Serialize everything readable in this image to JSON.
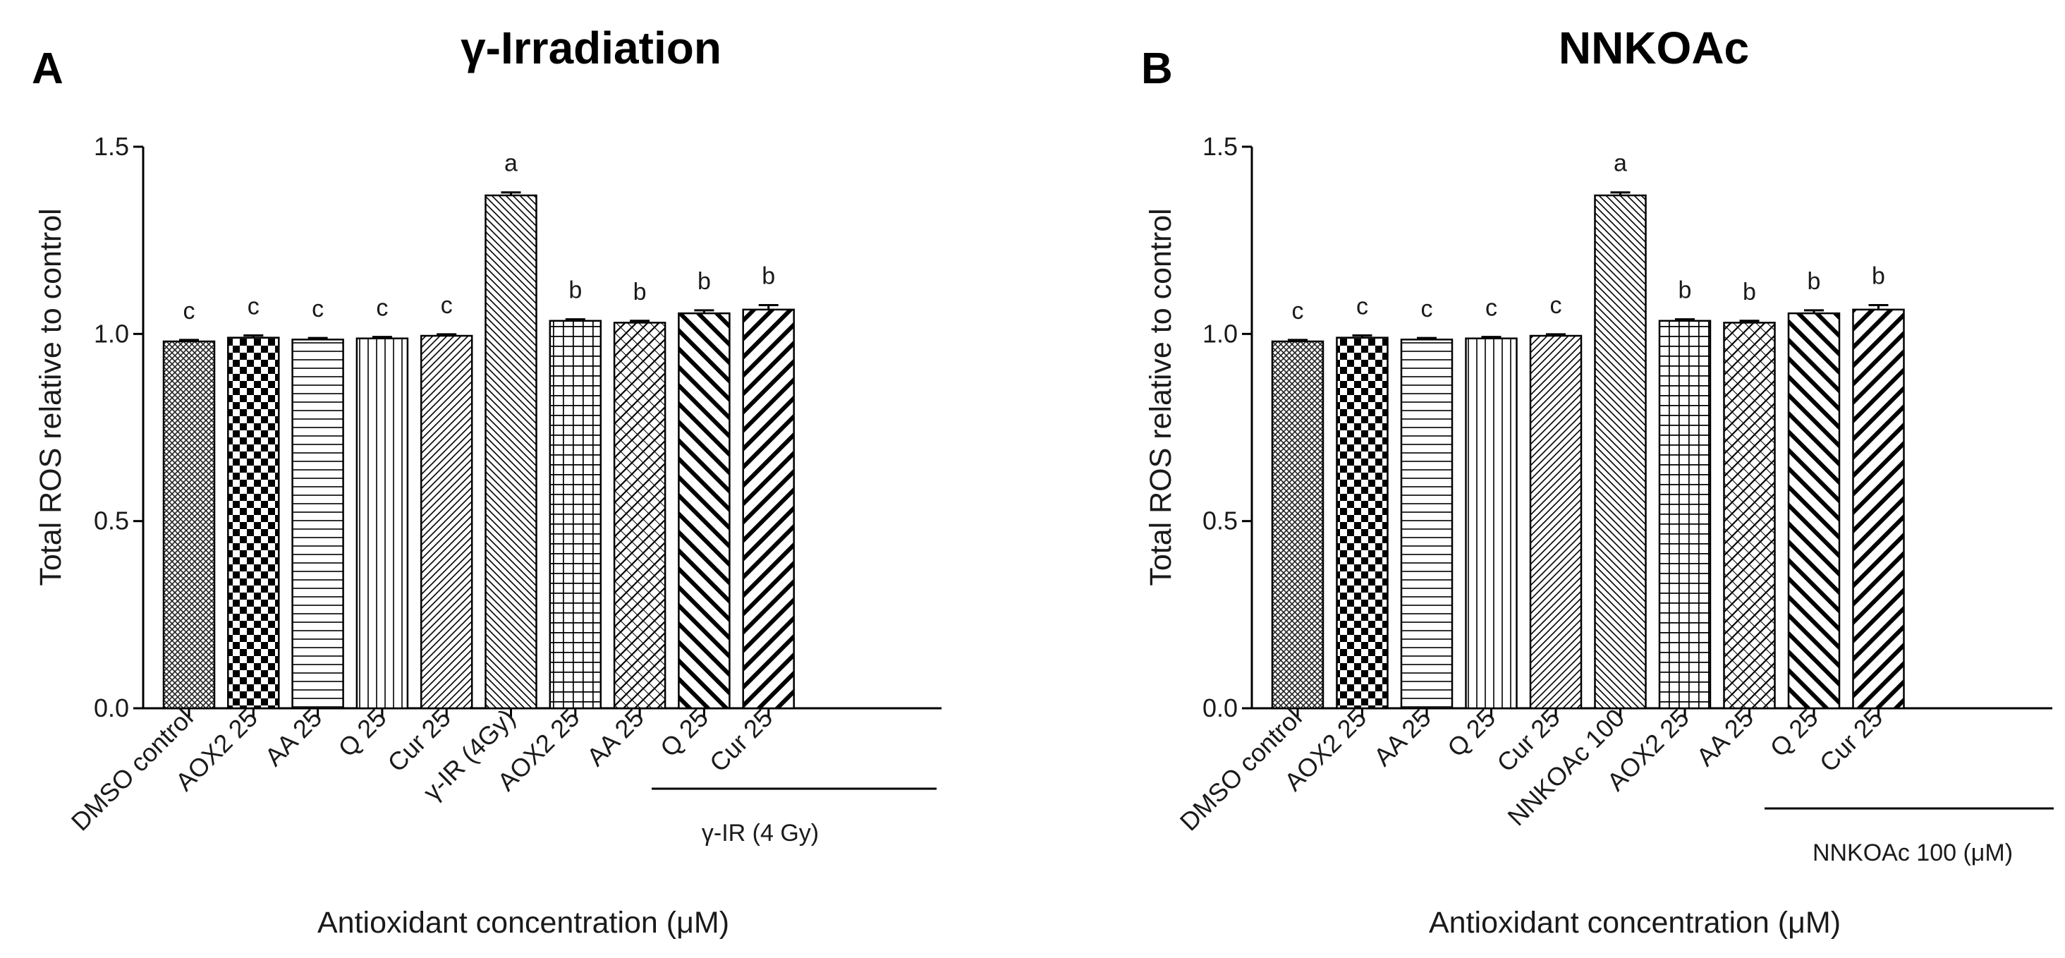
{
  "chart_data": [
    {
      "type": "bar",
      "panel_letter": "A",
      "title": "γ-Irradiation",
      "ylabel": "Total ROS relative to control",
      "xlabel": "Antioxidant concentration (μM)",
      "ylim": [
        0,
        1.5
      ],
      "yticks": [
        "0.0",
        "0.5",
        "1.0",
        "1.5"
      ],
      "categories": [
        "DMSO control",
        "AOX2 25",
        "AA 25",
        "Q 25",
        "Cur 25",
        "γ-IR (4Gy)",
        "AOX2 25",
        "AA 25",
        "Q 25",
        "Cur 25"
      ],
      "values": [
        0.98,
        0.99,
        0.985,
        0.988,
        0.995,
        1.37,
        1.035,
        1.03,
        1.055,
        1.065
      ],
      "errors": [
        0.004,
        0.006,
        0.004,
        0.004,
        0.004,
        0.008,
        0.004,
        0.005,
        0.008,
        0.012
      ],
      "significance": [
        "c",
        "c",
        "c",
        "c",
        "c",
        "a",
        "b",
        "b",
        "b",
        "b"
      ],
      "patterns": [
        "crosshatch-fine",
        "checker",
        "hlines",
        "vlines",
        "diag-fine",
        "diag-back",
        "grid",
        "diamond",
        "diag-back-bold",
        "diag-bold"
      ],
      "group_label": "γ-IR (4 Gy)",
      "group_start_index": 6,
      "grid": false
    },
    {
      "type": "bar",
      "panel_letter": "B",
      "title": "NNKOAc",
      "ylabel": "Total ROS relative to control",
      "xlabel": "Antioxidant concentration (μM)",
      "ylim": [
        0,
        1.5
      ],
      "yticks": [
        "0.0",
        "0.5",
        "1.0",
        "1.5"
      ],
      "categories": [
        "DMSO control",
        "AOX2 25",
        "AA 25",
        "Q 25",
        "Cur 25",
        "NNKOAc 100",
        "AOX2 25",
        "AA 25",
        "Q 25",
        "Cur 25"
      ],
      "values": [
        0.98,
        0.99,
        0.985,
        0.988,
        0.995,
        1.37,
        1.035,
        1.03,
        1.055,
        1.065
      ],
      "errors": [
        0.004,
        0.006,
        0.004,
        0.004,
        0.004,
        0.008,
        0.004,
        0.005,
        0.008,
        0.012
      ],
      "significance": [
        "c",
        "c",
        "c",
        "c",
        "c",
        "a",
        "b",
        "b",
        "b",
        "b"
      ],
      "patterns": [
        "crosshatch-fine",
        "checker",
        "hlines",
        "vlines",
        "diag-fine",
        "diag-back",
        "grid",
        "diamond",
        "diag-back-bold",
        "diag-bold"
      ],
      "group_label": "NNKOAc 100 (μM)",
      "group_start_index": 6,
      "grid": false
    }
  ]
}
